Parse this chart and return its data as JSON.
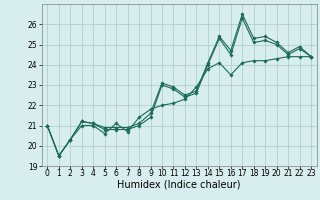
{
  "title": "",
  "xlabel": "Humidex (Indice chaleur)",
  "ylabel": "",
  "x": [
    0,
    1,
    2,
    3,
    4,
    5,
    6,
    7,
    8,
    9,
    10,
    11,
    12,
    13,
    14,
    15,
    16,
    17,
    18,
    19,
    20,
    21,
    22,
    23
  ],
  "line1": [
    21.0,
    19.5,
    20.3,
    21.2,
    21.1,
    20.9,
    20.9,
    20.9,
    21.1,
    21.6,
    23.1,
    22.9,
    22.5,
    22.7,
    24.1,
    25.4,
    24.7,
    26.5,
    25.3,
    25.4,
    25.1,
    24.6,
    24.9,
    24.4
  ],
  "line2": [
    21.0,
    19.5,
    20.3,
    21.2,
    21.1,
    20.8,
    20.8,
    20.8,
    21.0,
    21.4,
    23.0,
    22.8,
    22.4,
    22.6,
    24.0,
    25.3,
    24.5,
    26.3,
    25.1,
    25.2,
    25.0,
    24.5,
    24.8,
    24.4
  ],
  "line3": [
    21.0,
    19.5,
    20.3,
    21.0,
    21.0,
    20.6,
    21.1,
    20.7,
    21.4,
    21.8,
    22.0,
    22.1,
    22.3,
    22.9,
    23.8,
    24.1,
    23.5,
    24.1,
    24.2,
    24.2,
    24.3,
    24.4,
    24.4,
    24.4
  ],
  "bg_color": "#d8eeee",
  "grid_color": "#b0d0d0",
  "line_color": "#1a6b5a",
  "ylim": [
    19.0,
    27.0
  ],
  "xlim": [
    -0.5,
    23.5
  ],
  "yticks": [
    19,
    20,
    21,
    22,
    23,
    24,
    25,
    26
  ],
  "xticks": [
    0,
    1,
    2,
    3,
    4,
    5,
    6,
    7,
    8,
    9,
    10,
    11,
    12,
    13,
    14,
    15,
    16,
    17,
    18,
    19,
    20,
    21,
    22,
    23
  ],
  "tick_fontsize": 5.5,
  "label_fontsize": 7.0,
  "marker": "D",
  "markersize": 1.8,
  "linewidth": 0.8
}
